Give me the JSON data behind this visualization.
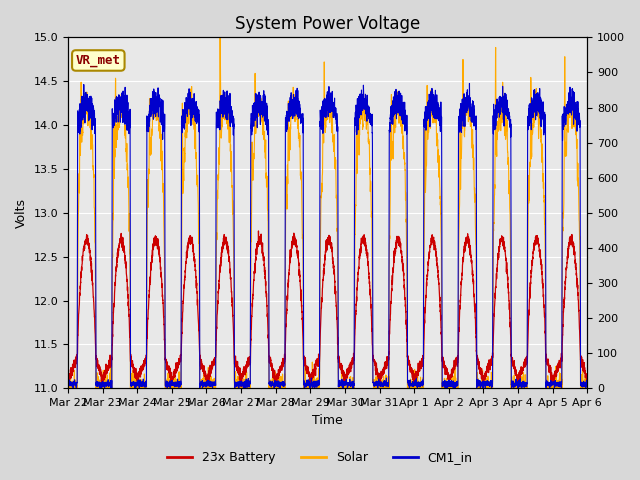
{
  "title": "System Power Voltage",
  "xlabel": "Time",
  "ylabel": "Volts",
  "ylim_left": [
    11.0,
    15.0
  ],
  "ylim_right": [
    0,
    1000
  ],
  "yticks_left": [
    11.0,
    11.5,
    12.0,
    12.5,
    13.0,
    13.5,
    14.0,
    14.5,
    15.0
  ],
  "yticks_right": [
    0,
    100,
    200,
    300,
    400,
    500,
    600,
    700,
    800,
    900,
    1000
  ],
  "num_days": 15,
  "xtick_labels": [
    "Mar 22",
    "Mar 23",
    "Mar 24",
    "Mar 25",
    "Mar 26",
    "Mar 27",
    "Mar 28",
    "Mar 29",
    "Mar 30",
    "Mar 31",
    "Apr 1",
    "Apr 2",
    "Apr 3",
    "Apr 4",
    "Apr 5",
    "Apr 6"
  ],
  "battery_color": "#cc0000",
  "solar_color": "#ffaa00",
  "cm1_color": "#0000cc",
  "battery_label": "23x Battery",
  "solar_label": "Solar",
  "cm1_label": "CM1_in",
  "annotation_text": "VR_met",
  "annotation_color": "#8B0000",
  "annotation_bg": "#ffffcc",
  "annotation_border": "#aa8800",
  "background_color": "#d8d8d8",
  "plot_bg_color": "#e8e8e8",
  "grid_color": "#ffffff",
  "title_fontsize": 12,
  "axis_fontsize": 9,
  "tick_fontsize": 8,
  "legend_fontsize": 9
}
